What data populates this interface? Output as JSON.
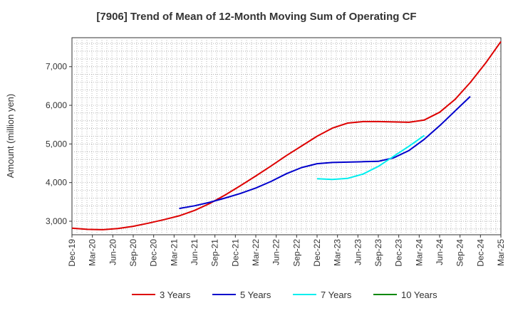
{
  "chart_data": {
    "type": "line",
    "title": "[7906]  Trend of Mean of 12-Month Moving Sum of Operating CF",
    "xlabel": "",
    "ylabel": "Amount (million yen)",
    "ylim": [
      2650,
      7750
    ],
    "yticks": [
      3000,
      4000,
      5000,
      6000,
      7000
    ],
    "ytick_labels": [
      "3,000",
      "4,000",
      "5,000",
      "6,000",
      "7,000"
    ],
    "x_ticks": [
      "Dec-19",
      "Mar-20",
      "Jun-20",
      "Sep-20",
      "Dec-20",
      "Mar-21",
      "Jun-21",
      "Sep-21",
      "Dec-21",
      "Mar-22",
      "Jun-22",
      "Sep-22",
      "Dec-22",
      "Mar-23",
      "Jun-23",
      "Sep-23",
      "Dec-23",
      "Mar-24",
      "Jun-24",
      "Sep-24",
      "Dec-24",
      "Mar-25"
    ],
    "grid": true,
    "legend_position": "bottom",
    "series": [
      {
        "name": "3 Years",
        "color": "#dd0000",
        "start_index": 0,
        "values": [
          2820,
          2790,
          2780,
          2810,
          2870,
          2950,
          3040,
          3140,
          3280,
          3460,
          3680,
          3920,
          4170,
          4430,
          4700,
          4950,
          5200,
          5410,
          5540,
          5580,
          5580,
          5570,
          5560,
          5620,
          5820,
          6150,
          6590,
          7090,
          7650
        ]
      },
      {
        "name": "5 Years",
        "color": "#0000cc",
        "start_index": 7,
        "values": [
          3330,
          3400,
          3490,
          3600,
          3720,
          3860,
          4030,
          4230,
          4390,
          4490,
          4520,
          4530,
          4540,
          4550,
          4640,
          4830,
          5120,
          5470,
          5850,
          6230
        ]
      },
      {
        "name": "7 Years",
        "color": "#00eeee",
        "start_index": 16,
        "values": [
          4100,
          4080,
          4110,
          4220,
          4420,
          4680,
          4940,
          5220
        ]
      },
      {
        "name": "10 Years",
        "color": "#008800",
        "start_index": 0,
        "values": []
      }
    ]
  }
}
